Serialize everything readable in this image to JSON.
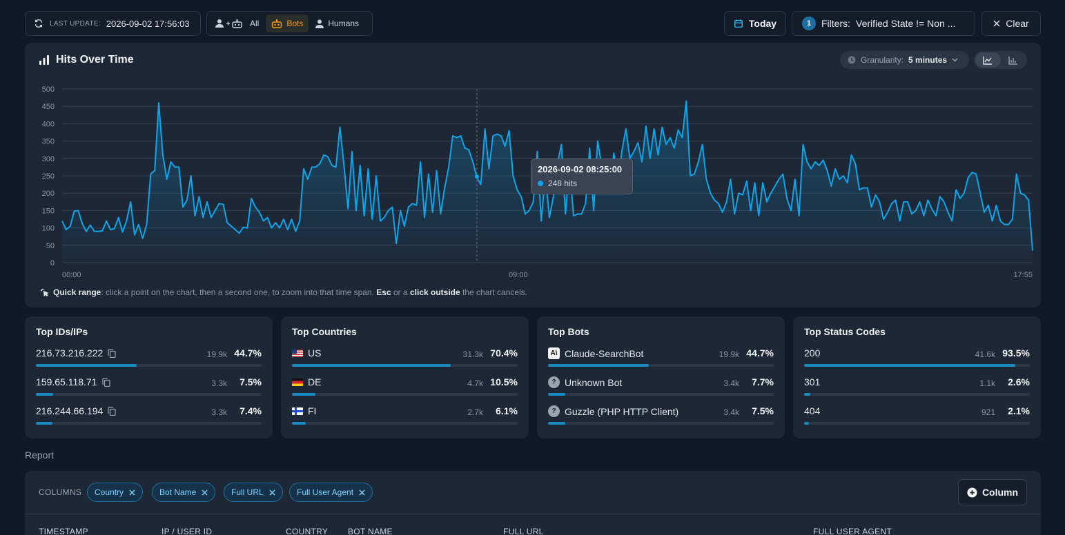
{
  "topbar": {
    "last_update_label": "LAST UPDATE:",
    "last_update_value": "2026-09-02 17:56:03",
    "modes": [
      {
        "label": "All",
        "icon": "user-plus-bot-icon",
        "active": false
      },
      {
        "label": "Bots",
        "icon": "bot-icon",
        "active": true
      },
      {
        "label": "Humans",
        "icon": "user-icon",
        "active": false
      }
    ],
    "today_label": "Today",
    "filter_count": "1",
    "filters_label": "Filters:",
    "filters_value": "Verified State != Non ...",
    "clear_label": "Clear"
  },
  "chart_card": {
    "title": "Hits Over Time",
    "granularity_label": "Granularity:",
    "granularity_value": "5 minutes",
    "hint": {
      "lead": "Quick range",
      "t1": ": click a point on the chart, then a second one, to zoom into that time span. ",
      "esc": "Esc",
      "t2": " or a ",
      "outside": "click outside",
      "t3": " the chart cancels."
    },
    "tooltip": {
      "time": "2026-09-02 08:25:00",
      "value": "248 hits"
    }
  },
  "chart_data": {
    "type": "area",
    "title": "Hits Over Time",
    "xlabel": "",
    "ylabel": "",
    "ylim": [
      0,
      500
    ],
    "yticks": [
      0,
      50,
      100,
      150,
      200,
      250,
      300,
      350,
      400,
      450,
      500
    ],
    "xtick_labels": [
      "00:00",
      "09:00",
      "17:55"
    ],
    "grid": true,
    "series": [
      {
        "values": [
          120,
          95,
          105,
          148,
          150,
          112,
          90,
          108,
          90,
          90,
          92,
          120,
          95,
          98,
          130,
          88,
          120,
          175,
          80,
          110,
          70,
          110,
          255,
          265,
          460,
          310,
          240,
          290,
          275,
          275,
          160,
          180,
          250,
          135,
          190,
          130,
          175,
          130,
          150,
          170,
          168,
          115,
          105,
          95,
          85,
          102,
          100,
          185,
          160,
          145,
          120,
          130,
          100,
          115,
          100,
          125,
          95,
          125,
          90,
          120,
          270,
          240,
          275,
          275,
          285,
          310,
          305,
          280,
          275,
          390,
          280,
          155,
          320,
          150,
          280,
          135,
          270,
          125,
          250,
          120,
          130,
          150,
          160,
          55,
          150,
          105,
          160,
          170,
          165,
          290,
          130,
          255,
          145,
          265,
          140,
          215,
          275,
          365,
          360,
          365,
          330,
          325,
          290,
          245,
          225,
          385,
          270,
          365,
          370,
          365,
          335,
          380,
          250,
          210,
          190,
          140,
          150,
          175,
          320,
          120,
          260,
          130,
          190,
          285,
          340,
          140,
          280,
          135,
          140,
          140,
          170,
          330,
          150,
          350,
          280,
          290,
          205,
          315,
          230,
          320,
          385,
          300,
          320,
          345,
          290,
          393,
          300,
          385,
          310,
          390,
          340,
          360,
          330,
          382,
          360,
          465,
          250,
          255,
          290,
          340,
          240,
          200,
          180,
          170,
          145,
          175,
          240,
          140,
          200,
          195,
          235,
          150,
          230,
          135,
          230,
          175,
          200,
          220,
          240,
          255,
          185,
          150,
          240,
          135,
          340,
          290,
          270,
          290,
          280,
          295,
          265,
          220,
          270,
          240,
          250,
          230,
          310,
          285,
          210,
          215,
          215,
          160,
          195,
          175,
          125,
          145,
          170,
          180,
          120,
          175,
          175,
          140,
          150,
          175,
          135,
          180,
          155,
          135,
          190,
          175,
          145,
          120,
          210,
          185,
          200,
          245,
          260,
          255,
          200,
          145,
          165,
          120,
          165,
          120,
          110,
          110,
          125,
          255,
          200,
          195,
          180,
          35
        ]
      }
    ]
  },
  "stats": [
    {
      "title": "Top IDs/IPs",
      "rows": [
        {
          "name": "216.73.216.222",
          "count": "19.9k",
          "pct": "44.7%",
          "frac": 0.447
        },
        {
          "name": "159.65.118.71",
          "count": "3.3k",
          "pct": "7.5%",
          "frac": 0.075
        },
        {
          "name": "216.244.66.194",
          "count": "3.3k",
          "pct": "7.4%",
          "frac": 0.074
        }
      ]
    },
    {
      "title": "Top Countries",
      "rows": [
        {
          "name": "US",
          "count": "31.3k",
          "pct": "70.4%",
          "frac": 0.704,
          "flag": "us"
        },
        {
          "name": "DE",
          "count": "4.7k",
          "pct": "10.5%",
          "frac": 0.105,
          "flag": "de"
        },
        {
          "name": "FI",
          "count": "2.7k",
          "pct": "6.1%",
          "frac": 0.061,
          "flag": "fi"
        }
      ]
    },
    {
      "title": "Top Bots",
      "rows": [
        {
          "name": "Claude-SearchBot",
          "count": "19.9k",
          "pct": "44.7%",
          "frac": 0.447,
          "icon": "anthropic"
        },
        {
          "name": "Unknown Bot",
          "count": "3.4k",
          "pct": "7.7%",
          "frac": 0.077,
          "icon": "question"
        },
        {
          "name": "Guzzle (PHP HTTP Client)",
          "count": "3.4k",
          "pct": "7.5%",
          "frac": 0.075,
          "icon": "question"
        }
      ]
    },
    {
      "title": "Top Status Codes",
      "rows": [
        {
          "name": "200",
          "count": "41.6k",
          "pct": "93.5%",
          "frac": 0.935
        },
        {
          "name": "301",
          "count": "1.1k",
          "pct": "2.6%",
          "frac": 0.026
        },
        {
          "name": "404",
          "count": "921",
          "pct": "2.1%",
          "frac": 0.021
        }
      ]
    }
  ],
  "report": {
    "label": "Report",
    "columns_label": "COLUMNS",
    "chips": [
      "Country",
      "Bot Name",
      "Full URL",
      "Full User Agent"
    ],
    "add_column_label": "Column",
    "headers": [
      "TIMESTAMP",
      "IP / USER ID",
      "COUNTRY",
      "BOT NAME",
      "FULL URL",
      "FULL USER AGENT"
    ]
  },
  "colors": {
    "accent": "#0ea5e9",
    "bots_active": "#f59e0b",
    "background": "#111827",
    "card": "#1e2736"
  }
}
